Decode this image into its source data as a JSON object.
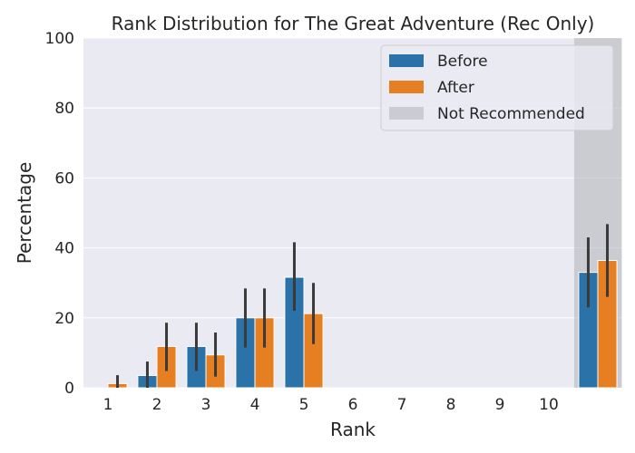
{
  "chart_data": {
    "type": "bar",
    "title": "Rank Distribution for The Great Adventure (Rec Only)",
    "xlabel": "Rank",
    "ylabel": "Percentage",
    "ylim": [
      0,
      100
    ],
    "yticks": [
      0,
      20,
      40,
      60,
      80,
      100
    ],
    "categories": [
      "1",
      "2",
      "3",
      "4",
      "5",
      "6",
      "7",
      "8",
      "9",
      "10",
      ""
    ],
    "grid": true,
    "legend_position": "top-right",
    "legend_entries": [
      "Before",
      "After",
      "Not Recommended"
    ],
    "not_recommended_band": {
      "label": "Not Recommended",
      "category_index": 10,
      "color": "#b0b0b8"
    },
    "series": [
      {
        "name": "Before",
        "color": "#2a72a8",
        "values": [
          0,
          3.5,
          11.8,
          20.0,
          31.6,
          0,
          0,
          0,
          0,
          0,
          33.0
        ],
        "error_low": [
          0,
          0,
          4.8,
          11.5,
          22.0,
          0,
          0,
          0,
          0,
          0,
          23.0
        ],
        "error_high": [
          0,
          7.5,
          18.6,
          28.4,
          41.6,
          0,
          0,
          0,
          0,
          0,
          43.0
        ]
      },
      {
        "name": "After",
        "color": "#e67e22",
        "values": [
          1.2,
          11.8,
          9.4,
          20.0,
          21.2,
          0,
          0,
          0,
          0,
          0,
          36.4
        ],
        "error_low": [
          0,
          4.8,
          3.2,
          11.5,
          12.5,
          0,
          0,
          0,
          0,
          0,
          26.0
        ],
        "error_high": [
          3.6,
          18.6,
          15.8,
          28.4,
          30.0,
          0,
          0,
          0,
          0,
          0,
          46.8
        ]
      }
    ]
  }
}
